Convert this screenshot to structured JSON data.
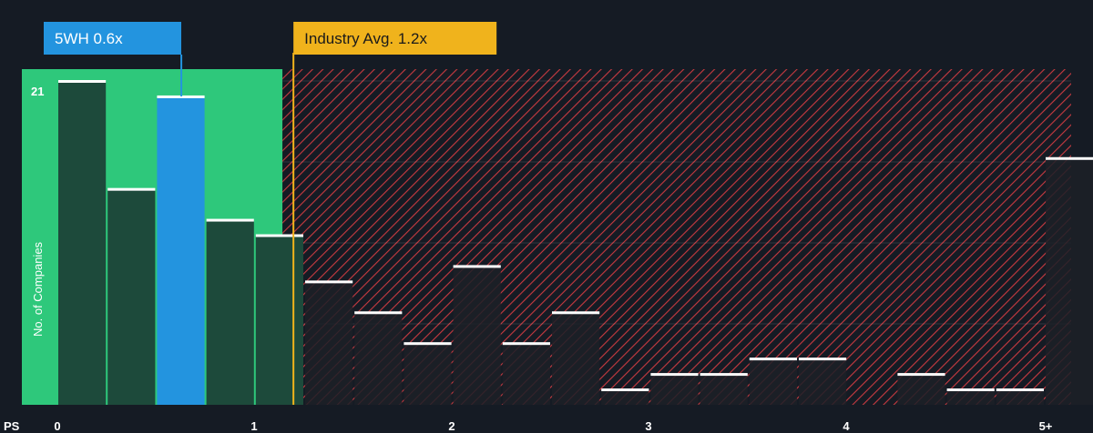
{
  "chart_data": {
    "type": "bar",
    "title": "",
    "xlabel": "PS",
    "ylabel": "No. of Companies",
    "x_ticks": [
      "0",
      "1",
      "2",
      "3",
      "4",
      "5+"
    ],
    "y_ticks": [
      "21"
    ],
    "ylim": [
      0,
      21
    ],
    "bin_width": 0.25,
    "bins": [
      {
        "start": 0.0,
        "count": 21
      },
      {
        "start": 0.25,
        "count": 14
      },
      {
        "start": 0.5,
        "count": 20
      },
      {
        "start": 0.75,
        "count": 12
      },
      {
        "start": 1.0,
        "count": 11
      },
      {
        "start": 1.25,
        "count": 8
      },
      {
        "start": 1.5,
        "count": 6
      },
      {
        "start": 1.75,
        "count": 4
      },
      {
        "start": 2.0,
        "count": 9
      },
      {
        "start": 2.25,
        "count": 4
      },
      {
        "start": 2.5,
        "count": 6
      },
      {
        "start": 2.75,
        "count": 1
      },
      {
        "start": 3.0,
        "count": 2
      },
      {
        "start": 3.25,
        "count": 2
      },
      {
        "start": 3.5,
        "count": 3
      },
      {
        "start": 3.75,
        "count": 3
      },
      {
        "start": 4.0,
        "count": 0
      },
      {
        "start": 4.25,
        "count": 2
      },
      {
        "start": 4.5,
        "count": 1
      },
      {
        "start": 4.75,
        "count": 1
      },
      {
        "start": 5.0,
        "count": 16
      }
    ],
    "company": {
      "label": "5WH 0.6x",
      "value": 0.6,
      "bin_index": 2,
      "color": "#2394df"
    },
    "industry": {
      "label": "Industry Avg. 1.2x",
      "value": 1.2,
      "color": "#f0b31c"
    },
    "colors": {
      "fair_zone": "#2ec87b",
      "fair_bar": "#1d4a3b",
      "over_zone_stripe": "#c83a40",
      "over_bar": "#1c2027",
      "bar_cap": "#ffffff",
      "background": "#151b24"
    }
  }
}
